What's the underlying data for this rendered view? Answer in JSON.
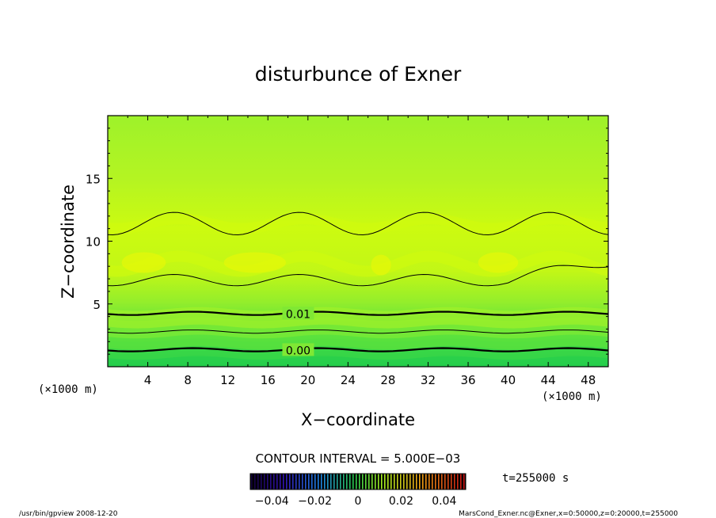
{
  "chart_data": {
    "type": "heatmap",
    "title": "disturbunce of Exner",
    "xlabel": "X−coordinate",
    "ylabel": "Z−coordinate",
    "x_unit": "(×1000 m)",
    "y_unit": "(×1000 m)",
    "xlim": [
      0,
      50
    ],
    "ylim": [
      0,
      20
    ],
    "x_ticks": [
      "4",
      "8",
      "12",
      "16",
      "20",
      "24",
      "28",
      "32",
      "36",
      "40",
      "44",
      "48"
    ],
    "y_ticks": [
      "5",
      "10",
      "15"
    ],
    "contour_interval_label": "CONTOUR INTERVAL = 5.000E−03",
    "contour_labels": [
      {
        "text": "0.01",
        "x": 17.6,
        "z": 4.2
      },
      {
        "text": "0.00",
        "x": 17.6,
        "z": 1.3
      }
    ],
    "colorbar": {
      "range": [
        -0.05,
        0.05
      ],
      "ticks": [
        "−0.04",
        "−0.02",
        "0",
        "0.02",
        "0.04"
      ],
      "tick_values": [
        -0.04,
        -0.02,
        0,
        0.02,
        0.04
      ]
    },
    "time_label": "t=255000  s",
    "footer_left": "/usr/bin/gpview   2008-12-20",
    "footer_right": "MarsCond_Exner.nc@Exner,x=0:50000,z=0:20000,t=255000"
  }
}
